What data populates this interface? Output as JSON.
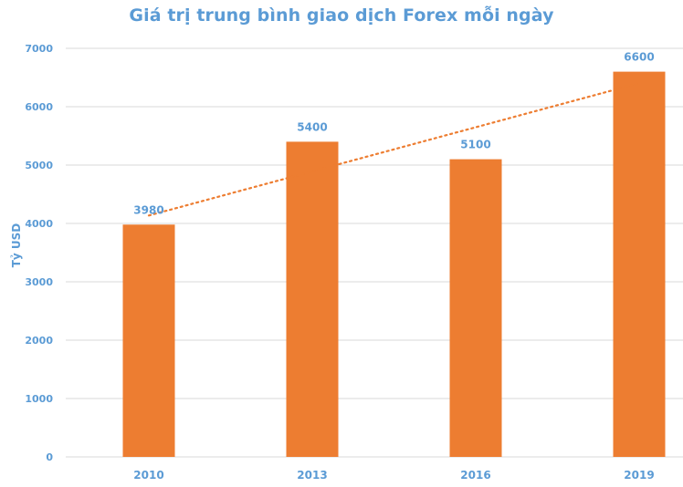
{
  "chart_data": {
    "type": "bar",
    "title": "Giá trị trung bình giao dịch Forex mỗi ngày",
    "xlabel": "",
    "ylabel": "Tỷ USD",
    "categories": [
      "2010",
      "2013",
      "2016",
      "2019"
    ],
    "values": [
      3980,
      5400,
      5100,
      6600
    ],
    "data_labels": [
      "3980",
      "5400",
      "5100",
      "6600"
    ],
    "ylim": [
      0,
      7000
    ],
    "yticks": [
      0,
      1000,
      2000,
      3000,
      4000,
      5000,
      6000,
      7000
    ],
    "grid": true,
    "legend": "none",
    "trendline": {
      "type": "linear",
      "style": "dotted"
    },
    "colors": {
      "bar": "#ed7d31",
      "text": "#5b9bd5",
      "grid": "#d9d9d9",
      "trendline": "#ed7d31"
    }
  }
}
